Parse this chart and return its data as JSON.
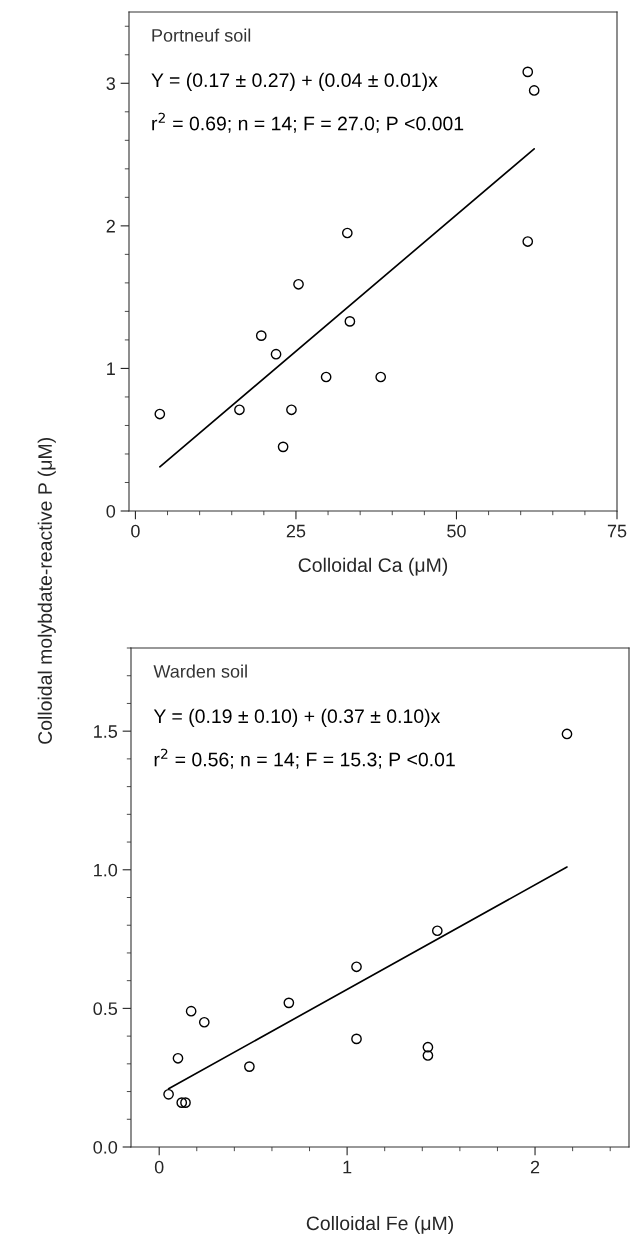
{
  "chart_data": [
    {
      "type": "scatter",
      "xlabel": "Colloidal Ca (μM)",
      "ylabel": "Colloidal molybdate-reactive P (μM)",
      "annotations": [
        "Portneuf soil",
        "Y = (0.17 ± 0.27) + (0.04 ± 0.01)x",
        "r$^{2}$ = 0.69; n = 14; F = 27.0; P <0.001"
      ],
      "x": [
        3.8,
        16.2,
        19.6,
        21.9,
        23.0,
        24.3,
        25.4,
        29.7,
        33.0,
        33.4,
        38.2,
        61.1,
        62.1,
        61.1
      ],
      "series": [
        {
          "type": "scatter",
          "color": "#000000",
          "marker": "circle",
          "values": [
            0.68,
            0.71,
            1.23,
            1.1,
            0.45,
            0.71,
            1.59,
            0.94,
            1.95,
            1.33,
            0.94,
            3.08,
            2.95,
            1.89
          ]
        },
        {
          "type": "line",
          "color": "#000000",
          "marker": "none",
          "line_style": "solid",
          "x": [
            3.8,
            62.1
          ],
          "values": [
            0.31,
            2.54
          ]
        }
      ],
      "xlim": [
        -1,
        75
      ],
      "xticks": [
        0,
        25,
        50,
        75
      ],
      "ylim": [
        0,
        3.5
      ],
      "yticks": [
        0,
        1,
        2,
        3
      ],
      "grid": false,
      "legend": false
    },
    {
      "type": "scatter",
      "xlabel": "Colloidal Fe (μM)",
      "annotations": [
        "Warden soil",
        "Y = (0.19 ± 0.10) + (0.37 ± 0.10)x",
        "r$^{2}$ = 0.56; n = 14; F = 15.3; P <0.01"
      ],
      "x": [
        0.05,
        0.1,
        0.12,
        0.14,
        0.17,
        0.24,
        0.48,
        0.69,
        1.05,
        1.05,
        1.48,
        1.43,
        1.43,
        2.17
      ],
      "series": [
        {
          "type": "scatter",
          "color": "#000000",
          "marker": "circle",
          "values": [
            0.19,
            0.32,
            0.16,
            0.16,
            0.49,
            0.45,
            0.29,
            0.52,
            0.65,
            0.39,
            0.78,
            0.36,
            0.33,
            1.49
          ]
        },
        {
          "type": "line",
          "color": "#000000",
          "marker": "none",
          "line_style": "solid",
          "x": [
            0.05,
            2.17
          ],
          "values": [
            0.21,
            1.01
          ]
        }
      ],
      "xlim": [
        -0.15,
        2.5
      ],
      "xticks": [
        0,
        1,
        2
      ],
      "ylim": [
        0,
        1.8
      ],
      "yticks": [
        {
          "value": 0,
          "label": "0.0"
        },
        {
          "value": 0.5,
          "label": "0.5"
        },
        {
          "value": 1.0,
          "label": "1.0"
        },
        {
          "value": 1.5,
          "label": "1.5"
        }
      ],
      "grid": false,
      "legend": false
    }
  ]
}
